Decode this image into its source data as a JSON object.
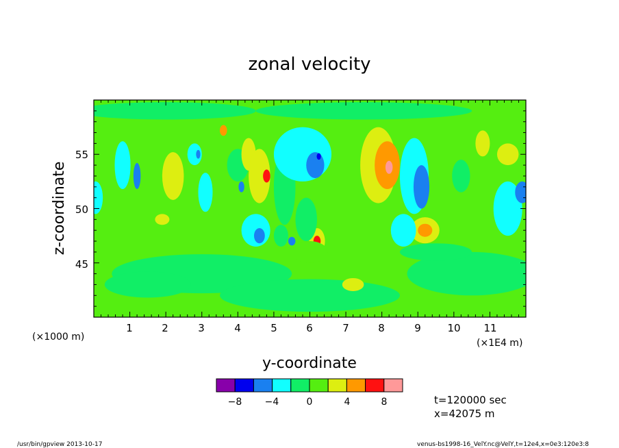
{
  "chart_data": {
    "type": "heatmap",
    "title": "zonal velocity",
    "xlabel": "y-coordinate",
    "ylabel": "z-coordinate",
    "x_unit_left": "(×1000 m)",
    "x_unit_right": "(×1E4 m)",
    "xlim": [
      0,
      12
    ],
    "ylim": [
      40,
      60
    ],
    "x_ticks": [
      "1",
      "2",
      "3",
      "4",
      "5",
      "6",
      "7",
      "8",
      "9",
      "10",
      "11"
    ],
    "y_ticks": [
      "45",
      "50",
      "55"
    ],
    "colorbar": {
      "levels": [
        -10,
        -8,
        -6,
        -4,
        -2,
        0,
        2,
        4,
        6,
        8,
        10
      ],
      "tick_labels": [
        "−8",
        "−4",
        "0",
        "4",
        "8"
      ],
      "colors": [
        "#8800aa",
        "#0000ee",
        "#1a80f0",
        "#11ffff",
        "#11ee66",
        "#55ee11",
        "#ddee11",
        "#ff9900",
        "#ff1111",
        "#ff9999"
      ]
    },
    "background_color": "#55ee11",
    "blobs": [
      {
        "x": 0.8,
        "z": 54,
        "rx": 0.22,
        "rz": 2.2,
        "v": -3
      },
      {
        "x": 1.2,
        "z": 53,
        "rx": 0.1,
        "rz": 1.2,
        "v": -6
      },
      {
        "x": 2.2,
        "z": 53,
        "rx": 0.3,
        "rz": 2.2,
        "v": 3
      },
      {
        "x": 2.8,
        "z": 55,
        "rx": 0.2,
        "rz": 1.0,
        "v": -3
      },
      {
        "x": 2.9,
        "z": 55,
        "rx": 0.06,
        "rz": 0.4,
        "v": -6
      },
      {
        "x": 3.1,
        "z": 51.5,
        "rx": 0.2,
        "rz": 1.8,
        "v": -3
      },
      {
        "x": 3.6,
        "z": 57.2,
        "rx": 0.1,
        "rz": 0.5,
        "v": 5
      },
      {
        "x": 4.0,
        "z": 54,
        "rx": 0.3,
        "rz": 1.5,
        "v": -1
      },
      {
        "x": 4.3,
        "z": 55,
        "rx": 0.2,
        "rz": 1.5,
        "v": 2
      },
      {
        "x": 4.6,
        "z": 53,
        "rx": 0.3,
        "rz": 2.5,
        "v": 3
      },
      {
        "x": 4.8,
        "z": 53,
        "rx": 0.1,
        "rz": 0.6,
        "v": 7
      },
      {
        "x": 4.5,
        "z": 48,
        "rx": 0.4,
        "rz": 1.5,
        "v": -3
      },
      {
        "x": 4.6,
        "z": 47.5,
        "rx": 0.15,
        "rz": 0.7,
        "v": -6
      },
      {
        "x": 5.3,
        "z": 52,
        "rx": 0.3,
        "rz": 3.5,
        "v": -1
      },
      {
        "x": 5.2,
        "z": 47.5,
        "rx": 0.2,
        "rz": 1.0,
        "v": -2
      },
      {
        "x": 5.5,
        "z": 47,
        "rx": 0.1,
        "rz": 0.4,
        "v": -5
      },
      {
        "x": 5.8,
        "z": 55,
        "rx": 0.8,
        "rz": 2.5,
        "v": -3
      },
      {
        "x": 6.15,
        "z": 54,
        "rx": 0.25,
        "rz": 1.2,
        "v": -5
      },
      {
        "x": 6.25,
        "z": 54.8,
        "rx": 0.06,
        "rz": 0.3,
        "v": -8
      },
      {
        "x": 6.2,
        "z": 47,
        "rx": 0.22,
        "rz": 1.2,
        "v": 3
      },
      {
        "x": 6.2,
        "z": 47,
        "rx": 0.1,
        "rz": 0.5,
        "v": 6
      },
      {
        "x": 6.0,
        "z": 46,
        "rx": 0.5,
        "rz": 1.0,
        "v": 1
      },
      {
        "x": 5.9,
        "z": 49,
        "rx": 0.3,
        "rz": 2.0,
        "v": -1
      },
      {
        "x": 7.9,
        "z": 54,
        "rx": 0.5,
        "rz": 3.5,
        "v": 3
      },
      {
        "x": 8.15,
        "z": 54,
        "rx": 0.35,
        "rz": 2.2,
        "v": 5
      },
      {
        "x": 8.2,
        "z": 53.8,
        "rx": 0.1,
        "rz": 0.6,
        "v": 8
      },
      {
        "x": 8.9,
        "z": 53,
        "rx": 0.4,
        "rz": 3.5,
        "v": -3
      },
      {
        "x": 9.1,
        "z": 52,
        "rx": 0.22,
        "rz": 2.0,
        "v": -5
      },
      {
        "x": 9.2,
        "z": 48,
        "rx": 0.4,
        "rz": 1.2,
        "v": 3
      },
      {
        "x": 9.2,
        "z": 48,
        "rx": 0.2,
        "rz": 0.6,
        "v": 5
      },
      {
        "x": 8.6,
        "z": 48,
        "rx": 0.35,
        "rz": 1.5,
        "v": -3
      },
      {
        "x": 10.2,
        "z": 53,
        "rx": 0.25,
        "rz": 1.5,
        "v": -1
      },
      {
        "x": 10.8,
        "z": 56,
        "rx": 0.2,
        "rz": 1.2,
        "v": 3
      },
      {
        "x": 11.5,
        "z": 50,
        "rx": 0.4,
        "rz": 2.5,
        "v": -3
      },
      {
        "x": 11.9,
        "z": 51.5,
        "rx": 0.2,
        "rz": 1.0,
        "v": -6
      },
      {
        "x": 0.05,
        "z": 51,
        "rx": 0.2,
        "rz": 1.5,
        "v": -3
      },
      {
        "x": 3.0,
        "z": 44,
        "rx": 2.5,
        "rz": 1.8,
        "v": -1
      },
      {
        "x": 6.0,
        "z": 42,
        "rx": 2.5,
        "rz": 1.5,
        "v": -1
      },
      {
        "x": 10.5,
        "z": 44,
        "rx": 1.8,
        "rz": 2.0,
        "v": -1
      },
      {
        "x": 1.5,
        "z": 43,
        "rx": 1.2,
        "rz": 1.2,
        "v": -1
      },
      {
        "x": 7.5,
        "z": 59,
        "rx": 3.0,
        "rz": 0.8,
        "v": -1
      },
      {
        "x": 2.0,
        "z": 59,
        "rx": 2.5,
        "rz": 0.8,
        "v": -1
      },
      {
        "x": 9.5,
        "z": 46,
        "rx": 1.0,
        "rz": 0.8,
        "v": -1
      },
      {
        "x": 11.5,
        "z": 55,
        "rx": 0.3,
        "rz": 1.0,
        "v": 2
      },
      {
        "x": 1.9,
        "z": 49,
        "rx": 0.2,
        "rz": 0.5,
        "v": 2
      },
      {
        "x": 7.2,
        "z": 43,
        "rx": 0.3,
        "rz": 0.6,
        "v": 2
      },
      {
        "x": 4.1,
        "z": 52,
        "rx": 0.08,
        "rz": 0.5,
        "v": -5
      }
    ]
  },
  "info": {
    "time": "t=120000 sec",
    "position": "x=42075 m"
  },
  "footer": {
    "left": "/usr/bin/gpview  2013-10-17",
    "right": "venus-bs1998-16_VelY.nc@VelY,t=12e4,x=0e3:120e3:8"
  }
}
